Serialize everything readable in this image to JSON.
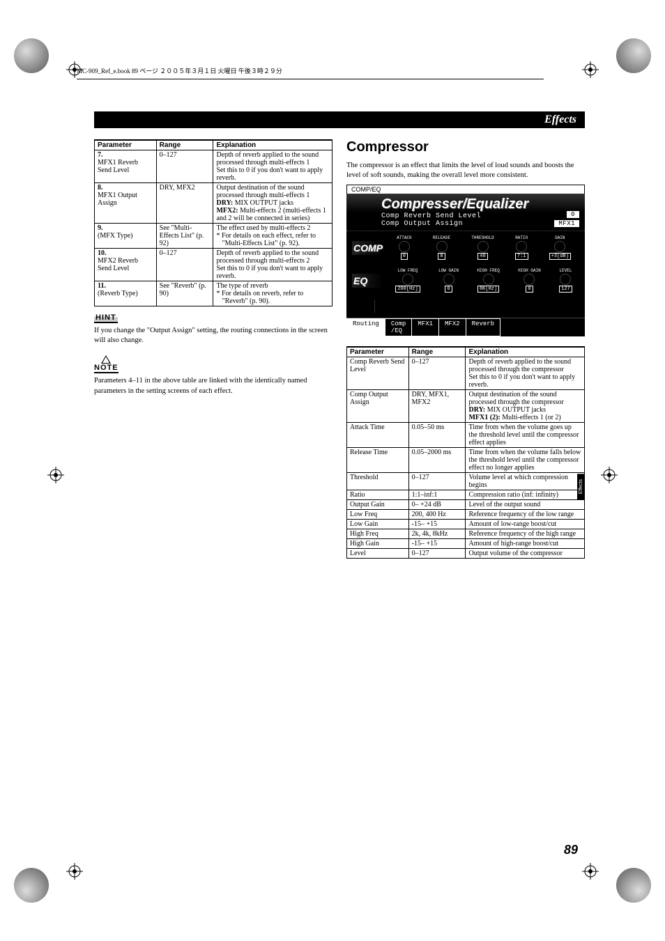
{
  "meta": {
    "book_info": "MC-909_Ref_e.book 89 ページ ２００５年３月１日 火曜日 午後３時２９分"
  },
  "header": {
    "title": "Effects"
  },
  "side_tab": "Effects",
  "page_number": "89",
  "left": {
    "table": {
      "headers": [
        "Parameter",
        "Range",
        "Explanation"
      ],
      "rows": [
        {
          "param_num": "7.",
          "param_name": "MFX1 Reverb Send Level",
          "range": "0–127",
          "expl": "Depth of reverb applied to the sound processed through multi-effects 1\nSet this to 0 if you don't want to apply reverb."
        },
        {
          "param_num": "8.",
          "param_name": "MFX1 Output Assign",
          "range": "DRY, MFX2",
          "expl": "Output destination of the sound processed through multi-effects 1\nDRY: MIX OUTPUT jacks\nMFX2: Multi-effects 2 (multi-effects 1 and 2 will be connected in series)"
        },
        {
          "param_num": "9.",
          "param_name": "(MFX Type)",
          "range": "See \"Multi-Effects List\" (p. 92)",
          "expl": "The effect used by multi-effects 2\n* For details on each effect, refer to \"Multi-Effects List\" (p. 92)."
        },
        {
          "param_num": "10.",
          "param_name": "MFX2 Reverb Send Level",
          "range": "0–127",
          "expl": "Depth of reverb applied to the sound processed through multi-effects 2\nSet this to 0 if you don't want to apply reverb."
        },
        {
          "param_num": "11.",
          "param_name": "(Reverb Type)",
          "range": "See \"Reverb\" (p. 90)",
          "expl": "The type of reverb\n* For details on reverb, refer to \"Reverb\" (p. 90)."
        }
      ]
    },
    "hint_text": "If you change the \"Output Assign\" setting, the routing connections in the screen will also change.",
    "note_text": "Parameters 4–11 in the above table are linked with the identically named parameters in the setting screens of each effect.",
    "hint_label": "HINT",
    "note_label": "NOTE"
  },
  "right": {
    "section_title": "Compressor",
    "intro": "The compressor is an effect that limits the level of loud sounds and boosts the level of soft sounds, making the overall level more consistent.",
    "lcd": {
      "top": "COMP/EQ",
      "title": "Compresser/Equalizer",
      "sub1": "Comp Reverb Send Level",
      "sub2": "Comp Output Assign",
      "val1": "0",
      "val2": "MFX1",
      "section1": {
        "label": "COMP",
        "knobs": [
          {
            "name": "ATTACK",
            "val": "0"
          },
          {
            "name": "RELEASE",
            "val": "8"
          },
          {
            "name": "THRESHOLD",
            "val": "40"
          },
          {
            "name": "RATIO",
            "val": "7:1"
          },
          {
            "name": "GAIN",
            "val": "+3[dB]"
          }
        ]
      },
      "section2": {
        "label": "EQ",
        "knobs": [
          {
            "name": "LOW FREQ",
            "val": "200[Hz]"
          },
          {
            "name": "LOW GAIN",
            "val": "0"
          },
          {
            "name": "HIGH FREQ",
            "val": "8K[Hz]"
          },
          {
            "name": "HIGH GAIN",
            "val": "0"
          },
          {
            "name": "LEVEL",
            "val": "127"
          }
        ]
      },
      "tabs": [
        "Routing",
        "Comp /EQ",
        "MFX1",
        "MFX2",
        "Reverb"
      ]
    },
    "table": {
      "headers": [
        "Parameter",
        "Range",
        "Explanation"
      ],
      "rows": [
        {
          "param": "Comp Reverb Send Level",
          "range": "0–127",
          "expl": "Depth of reverb applied to the sound processed through the compressor\nSet this to 0 if you don't want to apply reverb."
        },
        {
          "param": "Comp Output Assign",
          "range": "DRY, MFX1, MFX2",
          "expl": "Output destination of the sound processed through the compressor\nDRY: MIX OUTPUT jacks\nMFX1 (2): Multi-effects 1 (or 2)"
        },
        {
          "param": "Attack Time",
          "range": "0.05–50 ms",
          "expl": "Time from when the volume goes up the threshold level until the compressor effect applies"
        },
        {
          "param": "Release Time",
          "range": "0.05–2000 ms",
          "expl": "Time from when the volume falls below the threshold level until the compressor effect no longer applies"
        },
        {
          "param": "Threshold",
          "range": "0–127",
          "expl": "Volume level at which compression begins"
        },
        {
          "param": "Ratio",
          "range": "1:1–inf:1",
          "expl": "Compression ratio (inf: infinity)"
        },
        {
          "param": "Output Gain",
          "range": "0– +24 dB",
          "expl": "Level of the output sound"
        },
        {
          "param": "Low Freq",
          "range": "200, 400 Hz",
          "expl": "Reference frequency of the low range"
        },
        {
          "param": "Low Gain",
          "range": "-15– +15",
          "expl": "Amount of low-range boost/cut"
        },
        {
          "param": "High Freq",
          "range": "2k, 4k, 8kHz",
          "expl": "Reference frequency of the high range"
        },
        {
          "param": "High Gain",
          "range": "-15– +15",
          "expl": "Amount of high-range boost/cut"
        },
        {
          "param": "Level",
          "range": "0–127",
          "expl": "Output volume of the compressor"
        }
      ]
    }
  }
}
